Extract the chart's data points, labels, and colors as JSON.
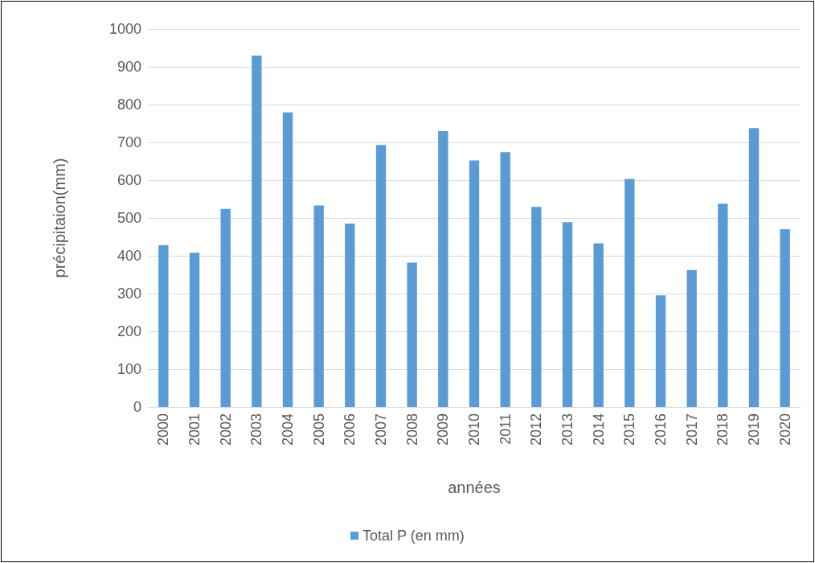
{
  "chart_data": {
    "type": "bar",
    "xlabel": "années",
    "ylabel": "précipitaion(mm)",
    "categories": [
      "2000",
      "2001",
      "2002",
      "2003",
      "2004",
      "2005",
      "2006",
      "2007",
      "2008",
      "2009",
      "2010",
      "2011",
      "2012",
      "2013",
      "2014",
      "2015",
      "2016",
      "2017",
      "2018",
      "2019",
      "2020"
    ],
    "series": [
      {
        "name": "Total P (en mm)",
        "color": "#5b9bd5",
        "values": [
          428,
          408,
          524,
          929,
          779,
          533,
          485,
          693,
          382,
          730,
          652,
          674,
          529,
          489,
          433,
          603,
          295,
          362,
          538,
          738,
          470
        ]
      }
    ],
    "ylim": [
      0,
      1000
    ],
    "yticks": [
      0,
      100,
      200,
      300,
      400,
      500,
      600,
      700,
      800,
      900,
      1000
    ],
    "grid": "y",
    "legend": "bottom"
  }
}
